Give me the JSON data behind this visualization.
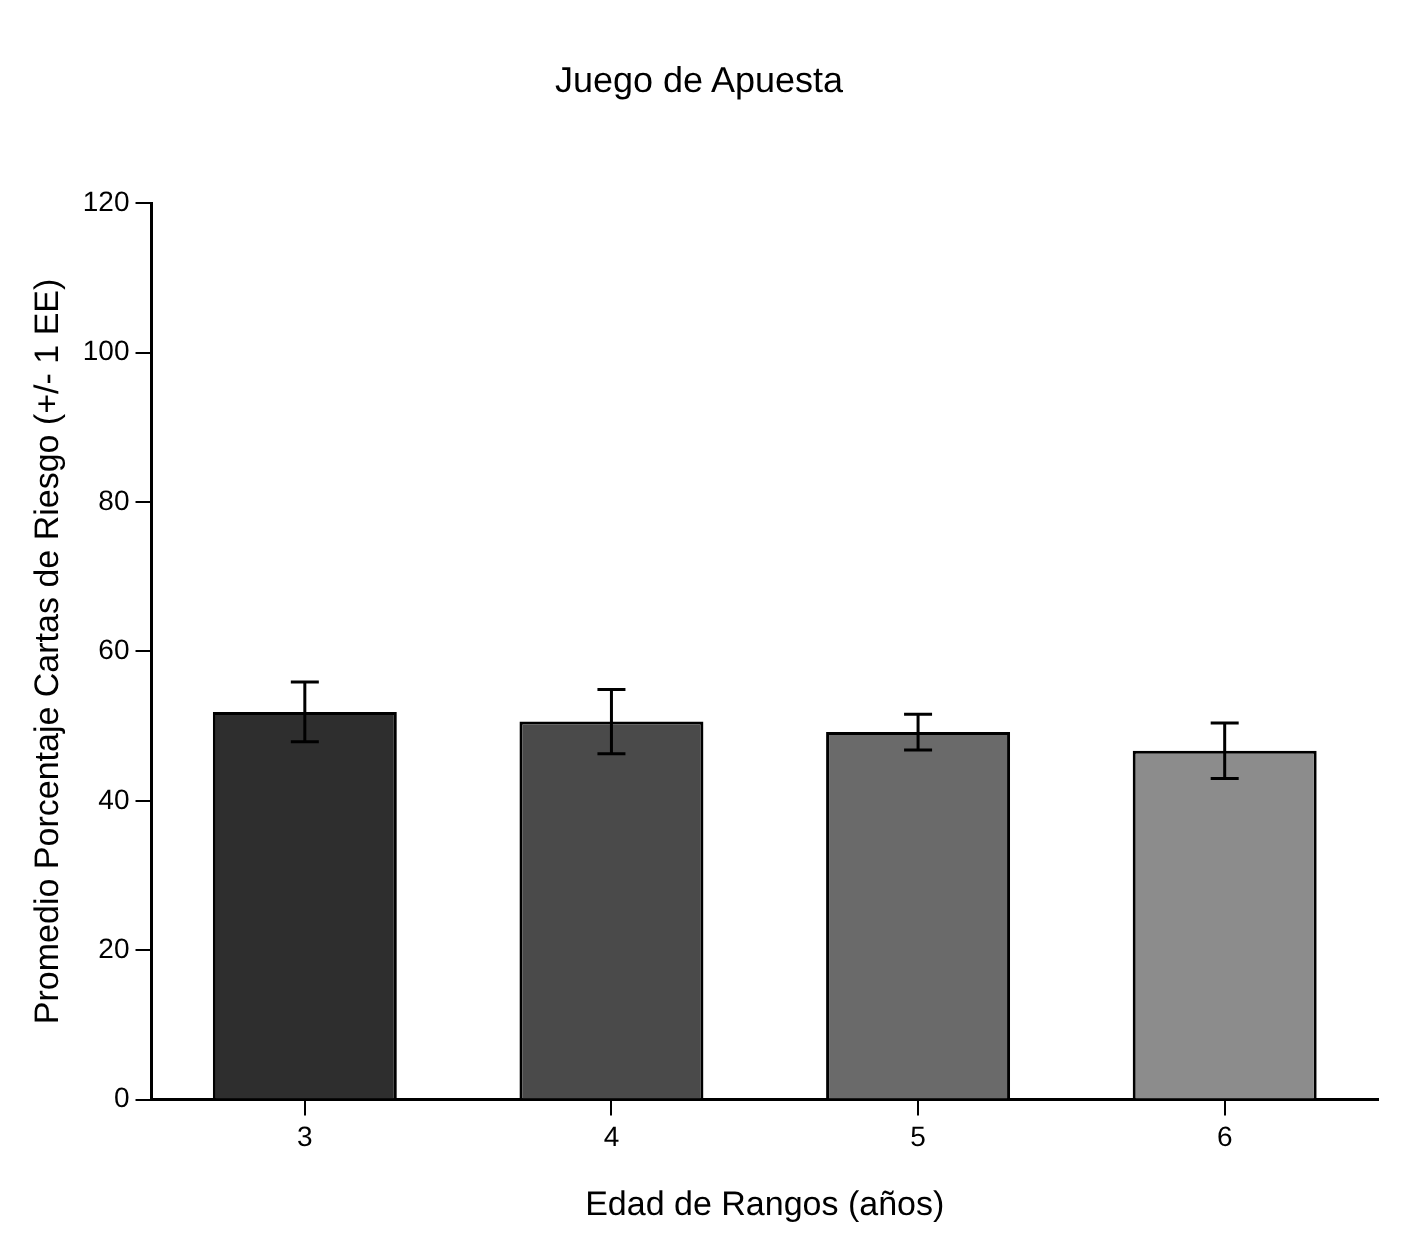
{
  "chart_data": {
    "type": "bar",
    "title": "Juego de Apuesta",
    "xlabel": "Edad de Rangos (años)",
    "ylabel": "Promedio Porcentaje Cartas de Riesgo (+/- 1 EE)",
    "categories": [
      "3",
      "4",
      "5",
      "6"
    ],
    "values": [
      51.9,
      50.6,
      49.2,
      46.7
    ],
    "errors": [
      4,
      4.3,
      2.4,
      3.7
    ],
    "colors": [
      "#2e2e2e",
      "#4a4a4a",
      "#6a6a6a",
      "#8c8c8c"
    ],
    "ylim": [
      0,
      120
    ],
    "yticks": [
      0,
      20,
      40,
      60,
      80,
      100,
      120
    ],
    "grid": false
  }
}
